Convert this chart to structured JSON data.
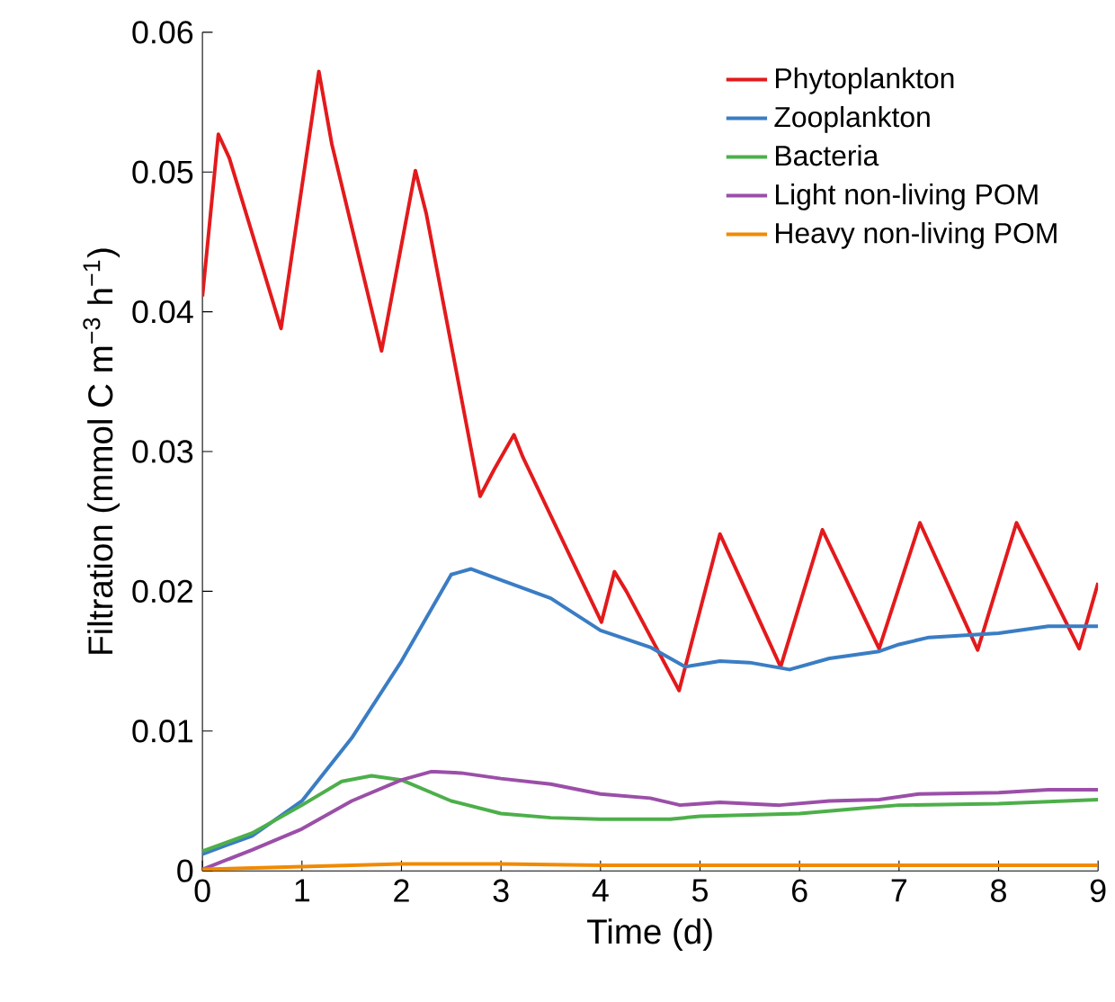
{
  "chart_data": {
    "type": "line",
    "xlabel": "Time (d)",
    "ylabel": "Filtration (mmol C m$^{−3}$ h$^{−1}$)",
    "xlim": [
      0,
      9
    ],
    "ylim": [
      0,
      0.06
    ],
    "xticks": [
      0,
      1,
      2,
      3,
      4,
      5,
      6,
      7,
      8,
      9
    ],
    "yticks": [
      0,
      0.01,
      0.02,
      0.03,
      0.04,
      0.05,
      0.06
    ],
    "legend": "top right",
    "marker": "none",
    "line_style": "solid",
    "series": [
      {
        "name": "Phytoplankton",
        "color": "#e31a1c",
        "x": [
          0,
          0.16,
          0.27,
          0.79,
          1.17,
          1.3,
          1.8,
          2.14,
          2.25,
          2.79,
          2.93,
          3.13,
          3.22,
          4.01,
          4.14,
          4.26,
          4.79,
          5.2,
          5.81,
          6.23,
          6.8,
          7.21,
          7.79,
          8.18,
          8.81,
          9
        ],
        "values": [
          0.0411,
          0.0527,
          0.051,
          0.0388,
          0.0572,
          0.052,
          0.0372,
          0.0501,
          0.047,
          0.0268,
          0.0287,
          0.0312,
          0.0296,
          0.0178,
          0.0214,
          0.02,
          0.0129,
          0.0241,
          0.0146,
          0.0244,
          0.0159,
          0.0249,
          0.0158,
          0.0249,
          0.0159,
          0.0206
        ]
      },
      {
        "name": "Zooplankton",
        "color": "#3a7dc4",
        "x": [
          0,
          0.5,
          1,
          1.5,
          2,
          2.5,
          2.7,
          3,
          3.5,
          4,
          4.5,
          4.85,
          5.2,
          5.5,
          5.9,
          6.3,
          6.8,
          7,
          7.3,
          8,
          8.5,
          9
        ],
        "values": [
          0.0012,
          0.0025,
          0.005,
          0.0095,
          0.015,
          0.0212,
          0.0216,
          0.0208,
          0.0195,
          0.0172,
          0.016,
          0.0146,
          0.015,
          0.0149,
          0.0144,
          0.0152,
          0.0157,
          0.0162,
          0.0167,
          0.017,
          0.0175,
          0.0175
        ]
      },
      {
        "name": "Bacteria",
        "color": "#4daf4a",
        "x": [
          0,
          0.5,
          1,
          1.4,
          1.7,
          2,
          2.5,
          3,
          3.5,
          4,
          4.7,
          5,
          6,
          6.5,
          7,
          8,
          9
        ],
        "values": [
          0.0014,
          0.0027,
          0.0047,
          0.0064,
          0.0068,
          0.0065,
          0.005,
          0.0041,
          0.0038,
          0.0037,
          0.0037,
          0.0039,
          0.0041,
          0.0044,
          0.0047,
          0.0048,
          0.0051
        ]
      },
      {
        "name": "Light non-living POM",
        "color": "#9b4fa8",
        "x": [
          0,
          0.5,
          1,
          1.5,
          2,
          2.3,
          2.6,
          3,
          3.5,
          4,
          4.5,
          4.8,
          5.2,
          5.8,
          6.3,
          6.8,
          7.2,
          8,
          8.5,
          9
        ],
        "values": [
          0.0001,
          0.0015,
          0.003,
          0.005,
          0.0065,
          0.0071,
          0.007,
          0.0066,
          0.0062,
          0.0055,
          0.0052,
          0.0047,
          0.0049,
          0.0047,
          0.005,
          0.0051,
          0.0055,
          0.0056,
          0.0058,
          0.0058
        ]
      },
      {
        "name": "Heavy non-living POM",
        "color": "#f08a00",
        "x": [
          0,
          1,
          2,
          3,
          4,
          5,
          9
        ],
        "values": [
          0.0001,
          0.0003,
          0.0005,
          0.0005,
          0.0004,
          0.0004,
          0.0004
        ]
      }
    ]
  }
}
